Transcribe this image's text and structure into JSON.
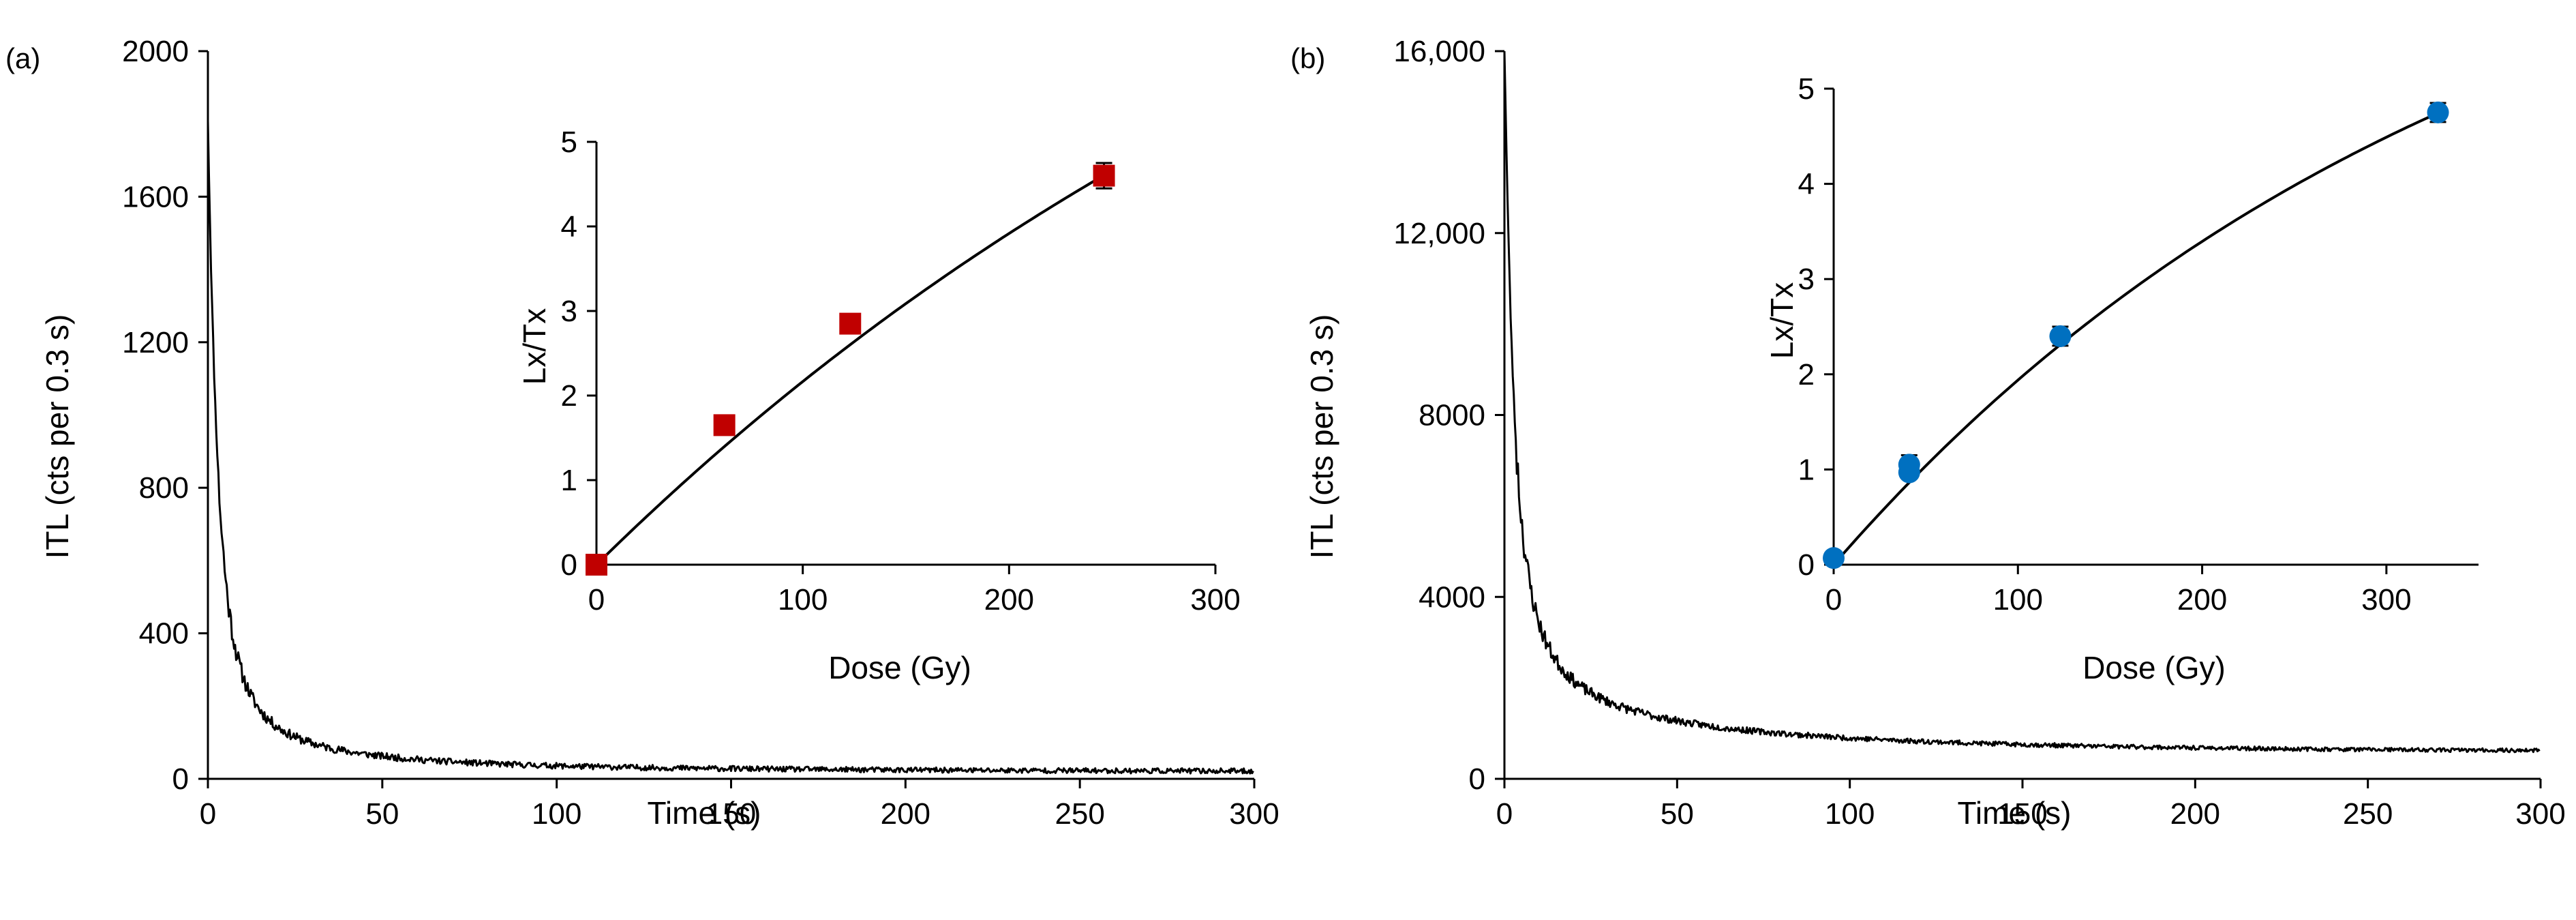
{
  "figure": {
    "panels": [
      "(a)",
      "(b)"
    ]
  },
  "chart_data": [
    {
      "id": "a-main",
      "panel": "(a)",
      "type": "line",
      "title": "",
      "xlabel": "Time (s)",
      "ylabel": "ITL (cts per 0.3 s)",
      "xlim": [
        0,
        300
      ],
      "ylim": [
        0,
        2000
      ],
      "xticks": [
        0,
        50,
        100,
        150,
        200,
        250,
        300
      ],
      "xtick_labels": [
        "0",
        "50",
        "100",
        "150",
        "200",
        "250",
        "300"
      ],
      "yticks": [
        0,
        400,
        800,
        1200,
        1600,
        2000
      ],
      "ytick_labels": [
        "0",
        "400",
        "800",
        "1200",
        "1600",
        "2000"
      ],
      "series": [
        {
          "name": "ITL decay",
          "color": "#000000",
          "decay_model": {
            "baseline": 20,
            "terms": [
              [
                1150,
                2.5
              ],
              [
                470,
                7
              ],
              [
                140,
                25
              ],
              [
                40,
                90
              ]
            ],
            "noise": 7,
            "seed": 11
          }
        }
      ]
    },
    {
      "id": "a-inset",
      "panel": "(a)",
      "type": "scatter",
      "title": "",
      "xlabel": "Dose (Gy)",
      "ylabel": "Lx/Tx",
      "xlim": [
        0,
        300
      ],
      "ylim": [
        0,
        5
      ],
      "xticks": [
        0,
        100,
        200,
        300
      ],
      "xtick_labels": [
        "0",
        "100",
        "200",
        "300"
      ],
      "yticks": [
        0,
        1,
        2,
        3,
        4,
        5
      ],
      "ytick_labels": [
        "0",
        "1",
        "2",
        "3",
        "4",
        "5"
      ],
      "series": [
        {
          "name": "Lx/Tx",
          "marker": "square",
          "color": "#c00000",
          "x": [
            0,
            62,
            123,
            246
          ],
          "y": [
            0,
            1.65,
            2.85,
            4.6
          ],
          "yerr": [
            0.03,
            0.07,
            0.08,
            0.15
          ]
        },
        {
          "name": "fit",
          "type": "line",
          "color": "#000000",
          "fit": {
            "a": 11.3,
            "d0": 470
          }
        }
      ]
    },
    {
      "id": "b-main",
      "panel": "(b)",
      "type": "line",
      "title": "",
      "xlabel": "Time (s)",
      "ylabel": "ITL (cts per 0.3 s)",
      "xlim": [
        0,
        300
      ],
      "ylim": [
        0,
        16000
      ],
      "xticks": [
        0,
        50,
        100,
        150,
        200,
        250,
        300
      ],
      "xtick_labels": [
        "0",
        "50",
        "100",
        "150",
        "200",
        "250",
        "300"
      ],
      "yticks": [
        0,
        4000,
        8000,
        12000,
        16000
      ],
      "ytick_labels": [
        "0",
        "4000",
        "8000",
        "12,000",
        "16,000"
      ],
      "series": [
        {
          "name": "ITL decay",
          "color": "#000000",
          "decay_model": {
            "baseline": 600,
            "terms": [
              [
                8600,
                2.2
              ],
              [
                4400,
                6
              ],
              [
                1700,
                20
              ],
              [
                1000,
                80
              ]
            ],
            "noise": 40,
            "seed": 23
          }
        }
      ]
    },
    {
      "id": "b-inset",
      "panel": "(b)",
      "type": "scatter",
      "title": "",
      "xlabel": "Dose (Gy)",
      "ylabel": "Lx/Tx",
      "xlim": [
        0,
        350
      ],
      "ylim": [
        0,
        5
      ],
      "xticks": [
        0,
        100,
        200,
        300
      ],
      "xtick_labels": [
        "0",
        "100",
        "200",
        "300"
      ],
      "yticks": [
        0,
        1,
        2,
        3,
        4,
        5
      ],
      "ytick_labels": [
        "0",
        "1",
        "2",
        "3",
        "4",
        "5"
      ],
      "series": [
        {
          "name": "Lx/Tx",
          "marker": "circle",
          "color": "#0070c0",
          "x": [
            0,
            41,
            41,
            123,
            328
          ],
          "y": [
            0.07,
            1.05,
            0.97,
            2.4,
            4.75
          ],
          "yerr": [
            0.03,
            0.1,
            0.06,
            0.1,
            0.1
          ]
        },
        {
          "name": "fit",
          "type": "line",
          "color": "#000000",
          "fit": {
            "a": 7.8,
            "d0": 350
          }
        }
      ]
    }
  ]
}
